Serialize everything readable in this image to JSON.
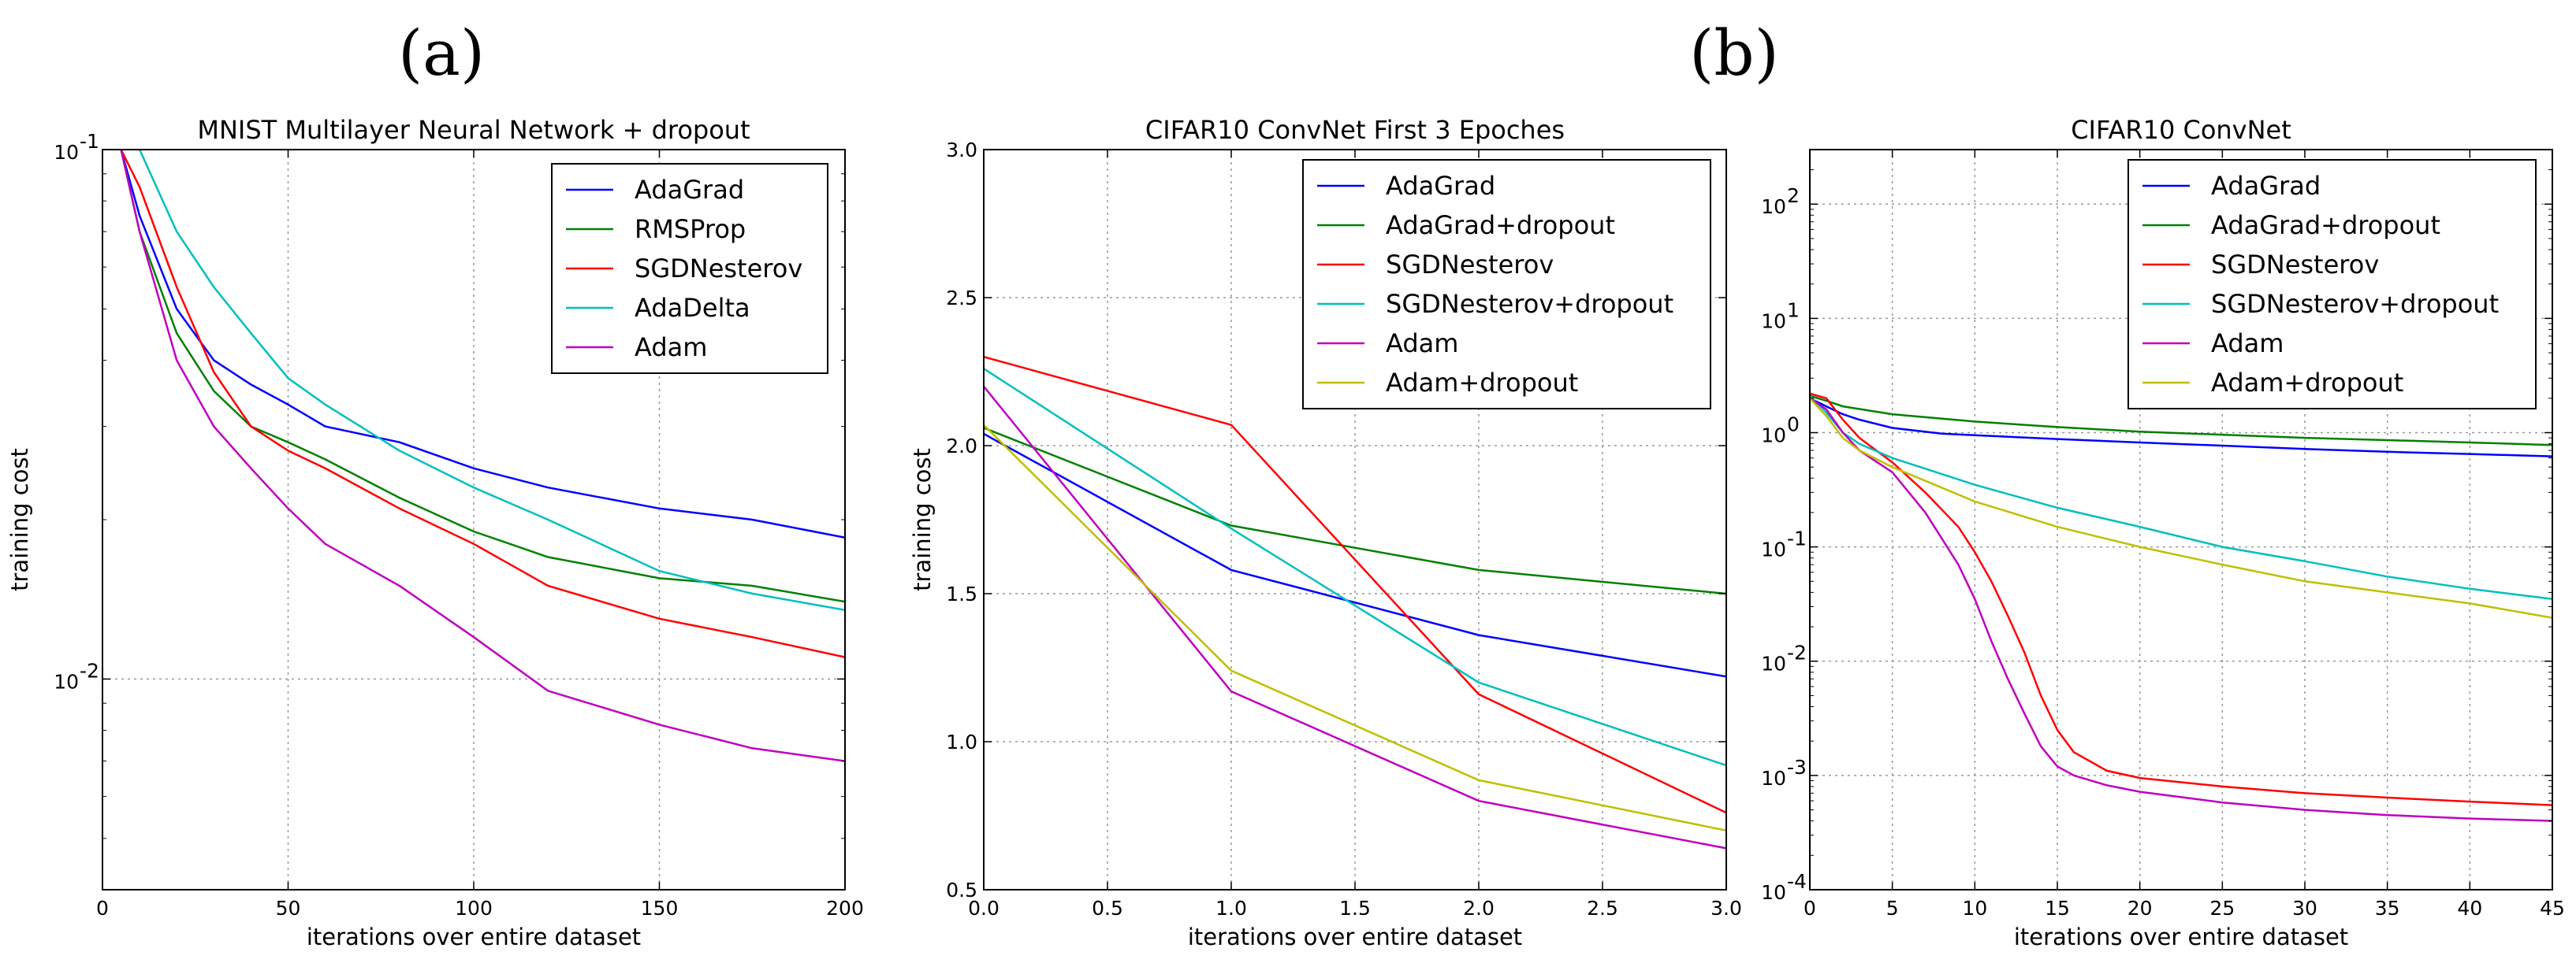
{
  "figure": {
    "panel_a_label": "(a)",
    "panel_b_label": "(b)"
  },
  "chart_data": [
    {
      "type": "line",
      "title": "MNIST Multilayer Neural Network + dropout",
      "xlabel": "iterations over entire dataset",
      "ylabel": "training cost",
      "xlim": [
        0,
        200
      ],
      "ylim": [
        0.004,
        0.1
      ],
      "yscale": "log",
      "x_ticks": [
        0,
        50,
        100,
        150,
        200
      ],
      "y_ticks": [
        {
          "value": 0.1,
          "base": "10",
          "exp": "-1"
        },
        {
          "value": 0.01,
          "base": "10",
          "exp": "-2"
        }
      ],
      "grid": true,
      "legend_position": "top-right",
      "series": [
        {
          "name": "AdaGrad",
          "color": "#0000ff",
          "x": [
            5,
            10,
            20,
            30,
            40,
            50,
            60,
            80,
            100,
            120,
            150,
            175,
            200
          ],
          "y": [
            0.1,
            0.075,
            0.05,
            0.04,
            0.036,
            0.033,
            0.03,
            0.028,
            0.025,
            0.023,
            0.021,
            0.02,
            0.0185
          ]
        },
        {
          "name": "RMSProp",
          "color": "#008000",
          "x": [
            5,
            10,
            20,
            30,
            40,
            50,
            60,
            80,
            100,
            120,
            150,
            175,
            200
          ],
          "y": [
            0.1,
            0.07,
            0.045,
            0.035,
            0.03,
            0.028,
            0.026,
            0.022,
            0.019,
            0.017,
            0.0155,
            0.015,
            0.014
          ]
        },
        {
          "name": "SGDNesterov",
          "color": "#ff0000",
          "x": [
            5,
            10,
            20,
            30,
            40,
            50,
            60,
            80,
            100,
            120,
            150,
            175,
            200
          ],
          "y": [
            0.1,
            0.085,
            0.055,
            0.038,
            0.03,
            0.027,
            0.025,
            0.021,
            0.018,
            0.015,
            0.013,
            0.012,
            0.011
          ]
        },
        {
          "name": "AdaDelta",
          "color": "#00bfbf",
          "x": [
            10,
            20,
            30,
            40,
            50,
            60,
            80,
            100,
            120,
            150,
            175,
            200
          ],
          "y": [
            0.1,
            0.07,
            0.055,
            0.045,
            0.037,
            0.033,
            0.027,
            0.023,
            0.02,
            0.016,
            0.0145,
            0.0135
          ]
        },
        {
          "name": "Adam",
          "color": "#bf00bf",
          "x": [
            5,
            10,
            20,
            30,
            40,
            50,
            60,
            80,
            100,
            120,
            150,
            175,
            200
          ],
          "y": [
            0.1,
            0.07,
            0.04,
            0.03,
            0.025,
            0.021,
            0.018,
            0.015,
            0.012,
            0.0095,
            0.0082,
            0.0074,
            0.007
          ]
        }
      ]
    },
    {
      "type": "line",
      "title": "CIFAR10 ConvNet First 3 Epoches",
      "xlabel": "iterations over entire dataset",
      "ylabel": "training cost",
      "xlim": [
        0.0,
        3.0
      ],
      "ylim": [
        0.5,
        3.0
      ],
      "yscale": "linear",
      "x_ticks": [
        "0.0",
        "0.5",
        "1.0",
        "1.5",
        "2.0",
        "2.5",
        "3.0"
      ],
      "y_ticks": [
        "0.5",
        "1.0",
        "1.5",
        "2.0",
        "2.5",
        "3.0"
      ],
      "grid": true,
      "legend_position": "top-right",
      "series": [
        {
          "name": "AdaGrad",
          "color": "#0000ff",
          "x": [
            0,
            1,
            2,
            3
          ],
          "y": [
            2.04,
            1.58,
            1.36,
            1.22
          ]
        },
        {
          "name": "AdaGrad+dropout",
          "color": "#008000",
          "x": [
            0,
            1,
            2,
            3
          ],
          "y": [
            2.06,
            1.73,
            1.58,
            1.5
          ]
        },
        {
          "name": "SGDNesterov",
          "color": "#ff0000",
          "x": [
            0,
            1,
            2,
            3
          ],
          "y": [
            2.3,
            2.07,
            1.16,
            0.76
          ]
        },
        {
          "name": "SGDNesterov+dropout",
          "color": "#00bfbf",
          "x": [
            0,
            1,
            2,
            3
          ],
          "y": [
            2.26,
            1.72,
            1.2,
            0.92
          ]
        },
        {
          "name": "Adam",
          "color": "#bf00bf",
          "x": [
            0,
            1,
            2,
            3
          ],
          "y": [
            2.2,
            1.17,
            0.8,
            0.64
          ]
        },
        {
          "name": "Adam+dropout",
          "color": "#bfbf00",
          "x": [
            0,
            1,
            2,
            3
          ],
          "y": [
            2.07,
            1.24,
            0.87,
            0.7
          ]
        }
      ]
    },
    {
      "type": "line",
      "title": "CIFAR10 ConvNet",
      "xlabel": "iterations over entire dataset",
      "ylabel": "",
      "xlim": [
        0,
        45
      ],
      "ylim": [
        0.0001,
        300
      ],
      "yscale": "log",
      "x_ticks": [
        0,
        5,
        10,
        15,
        20,
        25,
        30,
        35,
        40,
        45
      ],
      "y_ticks": [
        {
          "value": 0.0001,
          "base": "10",
          "exp": "-4"
        },
        {
          "value": 0.001,
          "base": "10",
          "exp": "-3"
        },
        {
          "value": 0.01,
          "base": "10",
          "exp": "-2"
        },
        {
          "value": 0.1,
          "base": "10",
          "exp": "-1"
        },
        {
          "value": 1,
          "base": "10",
          "exp": "0"
        },
        {
          "value": 10,
          "base": "10",
          "exp": "1"
        },
        {
          "value": 100,
          "base": "10",
          "exp": "2"
        }
      ],
      "grid": true,
      "legend_position": "top-right",
      "series": [
        {
          "name": "AdaGrad",
          "color": "#0000ff",
          "x": [
            0,
            1,
            2,
            3,
            5,
            8,
            10,
            15,
            20,
            25,
            30,
            35,
            40,
            45
          ],
          "y": [
            2.0,
            1.7,
            1.45,
            1.3,
            1.1,
            0.98,
            0.95,
            0.88,
            0.82,
            0.77,
            0.72,
            0.68,
            0.65,
            0.62
          ]
        },
        {
          "name": "AdaGrad+dropout",
          "color": "#008000",
          "x": [
            0,
            1,
            2,
            5,
            10,
            15,
            20,
            25,
            30,
            35,
            40,
            45
          ],
          "y": [
            2.1,
            1.9,
            1.7,
            1.45,
            1.25,
            1.12,
            1.02,
            0.96,
            0.9,
            0.86,
            0.82,
            0.78
          ]
        },
        {
          "name": "SGDNesterov",
          "color": "#ff0000",
          "x": [
            0,
            1,
            2,
            3,
            5,
            7,
            9,
            10,
            11,
            12,
            13,
            14,
            15,
            16,
            18,
            20,
            25,
            30,
            35,
            40,
            45
          ],
          "y": [
            2.2,
            2.0,
            1.3,
            0.9,
            0.55,
            0.3,
            0.15,
            0.09,
            0.05,
            0.025,
            0.012,
            0.005,
            0.0025,
            0.0016,
            0.0011,
            0.00095,
            0.0008,
            0.0007,
            0.00064,
            0.00059,
            0.00055
          ]
        },
        {
          "name": "SGDNesterov+dropout",
          "color": "#00bfbf",
          "x": [
            0,
            1,
            2,
            3,
            5,
            10,
            15,
            20,
            25,
            30,
            35,
            40,
            45
          ],
          "y": [
            2.1,
            1.5,
            1.0,
            0.8,
            0.6,
            0.35,
            0.22,
            0.15,
            0.1,
            0.075,
            0.055,
            0.043,
            0.035
          ]
        },
        {
          "name": "Adam",
          "color": "#bf00bf",
          "x": [
            0,
            1,
            2,
            3,
            5,
            7,
            9,
            10,
            11,
            12,
            13,
            14,
            15,
            16,
            18,
            20,
            25,
            30,
            35,
            40,
            45
          ],
          "y": [
            2.0,
            1.6,
            1.0,
            0.7,
            0.45,
            0.2,
            0.07,
            0.035,
            0.015,
            0.007,
            0.0035,
            0.0018,
            0.0012,
            0.001,
            0.00082,
            0.00072,
            0.00058,
            0.0005,
            0.00045,
            0.00042,
            0.0004
          ]
        },
        {
          "name": "Adam+dropout",
          "color": "#bfbf00",
          "x": [
            0,
            1,
            2,
            3,
            5,
            10,
            15,
            20,
            25,
            30,
            35,
            40,
            45
          ],
          "y": [
            2.0,
            1.4,
            0.9,
            0.7,
            0.5,
            0.25,
            0.15,
            0.1,
            0.07,
            0.05,
            0.04,
            0.032,
            0.024
          ]
        }
      ]
    }
  ]
}
